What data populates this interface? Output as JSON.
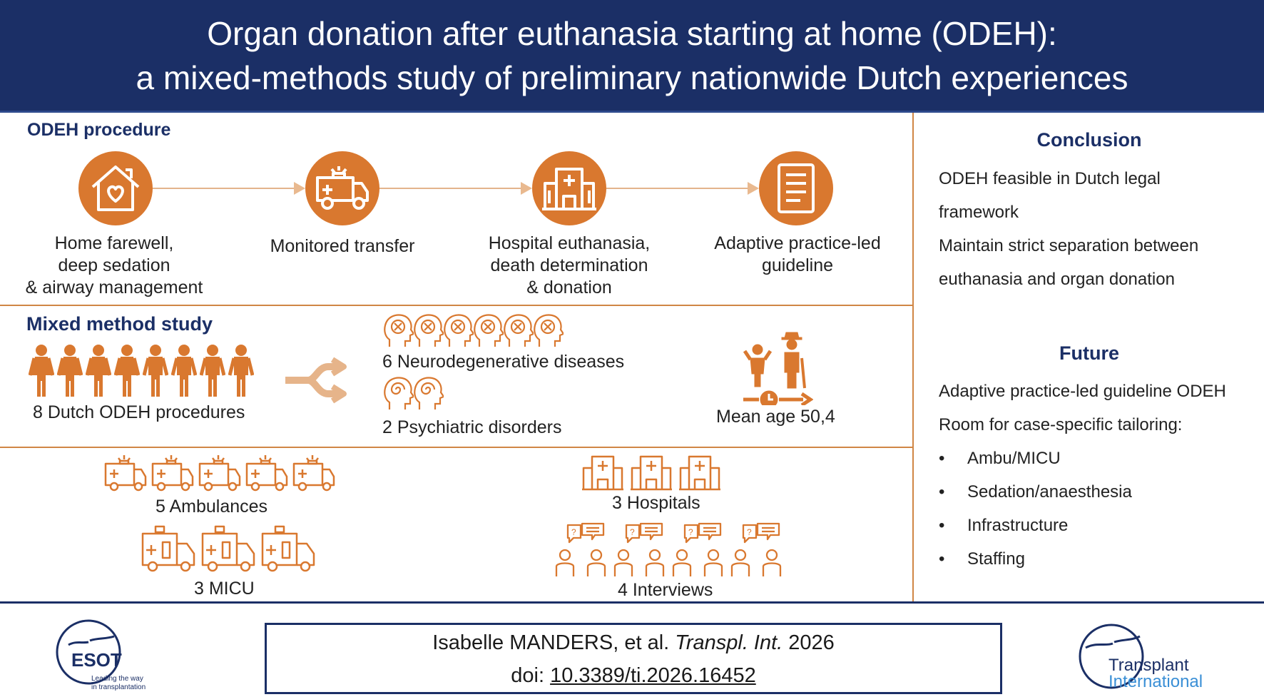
{
  "header": {
    "title_line1": "Organ donation after euthanasia starting at home (ODEH):",
    "title_line2": "a mixed-methods study of preliminary nationwide Dutch experiences"
  },
  "procedure": {
    "title": "ODEH procedure",
    "steps": [
      {
        "icon": "home-heart-icon",
        "lines": [
          "Home farewell,",
          "deep sedation",
          "& airway management"
        ]
      },
      {
        "icon": "ambulance-icon",
        "lines": [
          "Monitored transfer"
        ]
      },
      {
        "icon": "hospital-icon",
        "lines": [
          "Hospital euthanasia,",
          "death determination",
          "& donation"
        ]
      },
      {
        "icon": "document-icon",
        "lines": [
          "Adaptive practice-led",
          "guideline"
        ]
      }
    ]
  },
  "study": {
    "title": "Mixed method study",
    "procedures_label": "8 Dutch ODEH procedures",
    "neuro_label": "6 Neurodegenerative diseases",
    "psych_label": "2 Psychiatric disorders",
    "age_label": "Mean age 50,4",
    "ambulances_label": "5 Ambulances",
    "micu_label": "3 MICU",
    "hospitals_label": "3 Hospitals",
    "interviews_label": "4 Interviews",
    "counts": {
      "procedures": 8,
      "neuro": 6,
      "psych": 2,
      "ambulances": 5,
      "micu": 3,
      "hospitals": 3,
      "interviews": 4
    }
  },
  "conclusion": {
    "title": "Conclusion",
    "lines": [
      "ODEH feasible in Dutch legal",
      "framework",
      "Maintain strict separation between",
      "euthanasia and organ donation"
    ]
  },
  "future": {
    "title": "Future",
    "lines": [
      "Adaptive practice-led guideline ODEH",
      "Room for case-specific tailoring:"
    ],
    "bullets": [
      "Ambu/MICU",
      "Sedation/anaesthesia",
      "Infrastructure",
      "Staffing"
    ]
  },
  "citation": {
    "authors": "Isabelle MANDERS, et al. ",
    "journal": "Transpl. Int.",
    "year": " 2026",
    "doi_prefix": "doi: ",
    "doi": "10.3389/ti.2026.16452"
  },
  "logos": {
    "esot_name": "ESOT",
    "esot_tagline_1": "Leading the way",
    "esot_tagline_2": "in transplantation",
    "ti_line1": "Transplant",
    "ti_line2": "International"
  },
  "colors": {
    "navy": "#1b2f66",
    "orange": "#d9782f",
    "line_orange": "#d08645"
  }
}
